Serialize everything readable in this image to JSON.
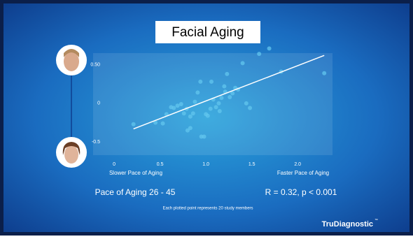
{
  "chart_data": {
    "type": "scatter",
    "title": "Facial Aging",
    "x": [
      0.21,
      0.45,
      0.53,
      0.57,
      0.62,
      0.65,
      0.69,
      0.73,
      0.76,
      0.79,
      0.8,
      0.83,
      0.83,
      0.86,
      0.88,
      0.91,
      0.94,
      0.95,
      0.98,
      1.0,
      1.02,
      1.05,
      1.06,
      1.08,
      1.11,
      1.14,
      1.15,
      1.17,
      1.2,
      1.21,
      1.23,
      1.26,
      1.29,
      1.32,
      1.35,
      1.4,
      1.44,
      1.48,
      1.58,
      1.69,
      1.82,
      2.29
    ],
    "values": [
      -0.27,
      -0.25,
      -0.26,
      -0.14,
      -0.05,
      -0.06,
      -0.03,
      -0.01,
      -0.13,
      -0.07,
      -0.35,
      -0.32,
      -0.17,
      -0.13,
      0.02,
      0.14,
      0.28,
      -0.43,
      -0.43,
      -0.14,
      -0.16,
      -0.07,
      0.28,
      0.05,
      -0.05,
      0,
      -0.1,
      0.07,
      0.22,
      0.15,
      0.38,
      0.08,
      0.13,
      0.2,
      0.18,
      0.52,
      0,
      -0.06,
      0.64,
      0.71,
      0.41,
      0.39
    ],
    "color": "#62c6ee",
    "trend": {
      "x": [
        0.21,
        2.29
      ],
      "values": [
        -0.33,
        0.62
      ],
      "color": "#ffffff"
    },
    "xlim": [
      -0.23,
      2.38
    ],
    "ylim": [
      -0.67,
      0.65
    ],
    "xticks": [
      0,
      0.5,
      {
        "value": 1,
        "label": "1.0"
      },
      1.5,
      {
        "value": 2,
        "label": "2.0"
      }
    ],
    "yticks": [
      {
        "value": 0.5,
        "label": "0.50"
      },
      0,
      -0.5
    ],
    "x_left_label": "Slower Pace of Aging",
    "x_right_label": "Faster Pace of Aging",
    "subtitle_left": "Pace of Aging 26 - 45",
    "subtitle_right": "R = 0.32, p < 0.001",
    "note": "Each plotted point represents 20 study members",
    "logo": "TruDiagnostic",
    "logo_mark": "™"
  }
}
